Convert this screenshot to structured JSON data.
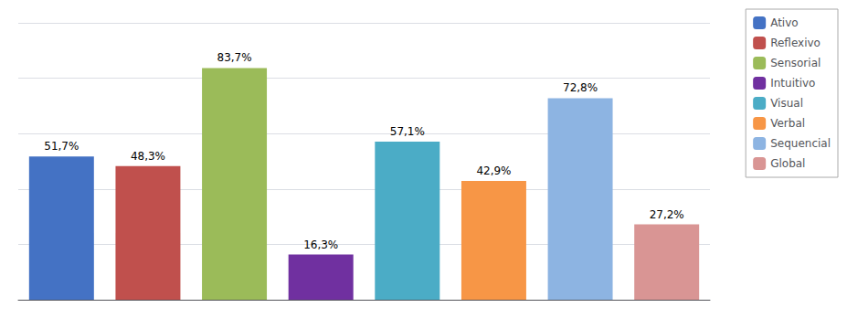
{
  "chart_data": {
    "type": "bar",
    "categories": [
      "Ativo",
      "Reflexivo",
      "Sensorial",
      "Intuitivo",
      "Visual",
      "Verbal",
      "Sequencial",
      "Global"
    ],
    "values": [
      51.7,
      48.3,
      83.7,
      16.3,
      57.1,
      42.9,
      72.8,
      27.2
    ],
    "value_labels": [
      "51,7%",
      "48,3%",
      "83,7%",
      "16,3%",
      "57,1%",
      "42,9%",
      "72,8%",
      "27,2%"
    ],
    "colors": [
      "#4472c4",
      "#c0504d",
      "#9bbb59",
      "#7030a0",
      "#4bacc6",
      "#f79646",
      "#8db4e2",
      "#d99594"
    ],
    "data_labels": true,
    "ylim": [
      0,
      100
    ],
    "yticks": [
      0,
      20,
      40,
      60,
      80,
      100
    ],
    "grid": true,
    "legend": "upper right",
    "tick_labels": false
  }
}
